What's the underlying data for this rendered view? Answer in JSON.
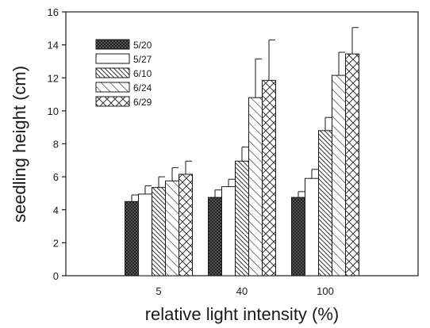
{
  "chart_data": {
    "type": "bar",
    "title": "",
    "xlabel": "relative light intensity (%)",
    "ylabel": "seedling height (cm)",
    "ylim": [
      0,
      16
    ],
    "yticks": [
      0,
      2,
      4,
      6,
      8,
      10,
      12,
      14,
      16
    ],
    "categories": [
      "5",
      "40",
      "100"
    ],
    "legend_position": "top-left",
    "grid": false,
    "series": [
      {
        "name": "5/20",
        "pattern": "crosshatch-dense",
        "values": [
          4.5,
          4.75,
          4.75
        ],
        "errors": [
          0.4,
          0.45,
          0.35
        ]
      },
      {
        "name": "5/27",
        "pattern": "solid-white",
        "values": [
          4.95,
          5.4,
          5.9
        ],
        "errors": [
          0.5,
          0.45,
          0.55
        ]
      },
      {
        "name": "6/10",
        "pattern": "diagonal-dense",
        "values": [
          5.35,
          6.95,
          8.8
        ],
        "errors": [
          0.65,
          0.85,
          0.8
        ]
      },
      {
        "name": "6/24",
        "pattern": "diagonal-wide",
        "values": [
          5.75,
          10.8,
          12.15
        ],
        "errors": [
          0.8,
          2.35,
          1.4
        ]
      },
      {
        "name": "6/29",
        "pattern": "crosshatch-wide",
        "values": [
          6.15,
          11.85,
          13.45
        ],
        "errors": [
          0.8,
          2.45,
          1.6
        ]
      }
    ]
  }
}
